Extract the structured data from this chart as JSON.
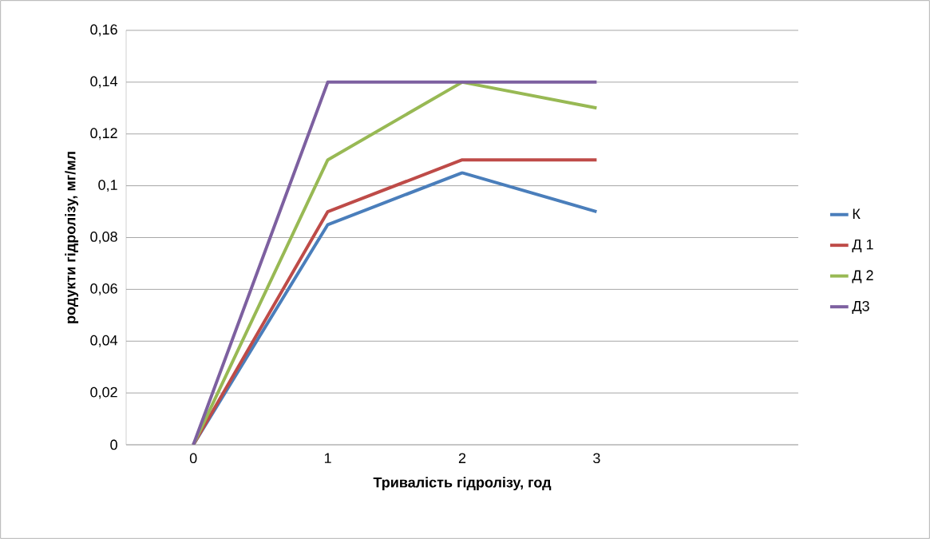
{
  "chart_data": {
    "type": "line",
    "xlabel": "Тривалість гідролізу, год",
    "ylabel": "родукти гідролізу, мг/мл",
    "x": [
      0,
      1,
      2,
      3
    ],
    "xlim": [
      -0.5,
      4.5
    ],
    "xticks": [
      0,
      1,
      2,
      3
    ],
    "ylim": [
      0,
      0.16
    ],
    "yticks": [
      0,
      {
        "value": 0.02,
        "label": "0,02"
      },
      {
        "value": 0.04,
        "label": "0,04"
      },
      {
        "value": 0.06,
        "label": "0,06"
      },
      {
        "value": 0.08,
        "label": "0,08"
      },
      {
        "value": 0.1,
        "label": "0,1"
      },
      {
        "value": 0.12,
        "label": "0,12"
      },
      {
        "value": 0.14,
        "label": "0,14"
      },
      {
        "value": 0.16,
        "label": "0,16"
      }
    ],
    "grid": "y",
    "legend": "right",
    "marker": "none",
    "series": [
      {
        "name": "К",
        "color": "#4a7ebb",
        "values": [
          0,
          0.085,
          0.105,
          0.09
        ]
      },
      {
        "name": "Д 1",
        "color": "#be4b48",
        "values": [
          0,
          0.09,
          0.11,
          0.11
        ]
      },
      {
        "name": "Д 2",
        "color": "#98b954",
        "values": [
          0,
          0.11,
          0.14,
          0.13
        ]
      },
      {
        "name": "Д3",
        "color": "#7d60a0",
        "values": [
          0,
          0.14,
          0.14,
          0.14
        ]
      }
    ]
  }
}
